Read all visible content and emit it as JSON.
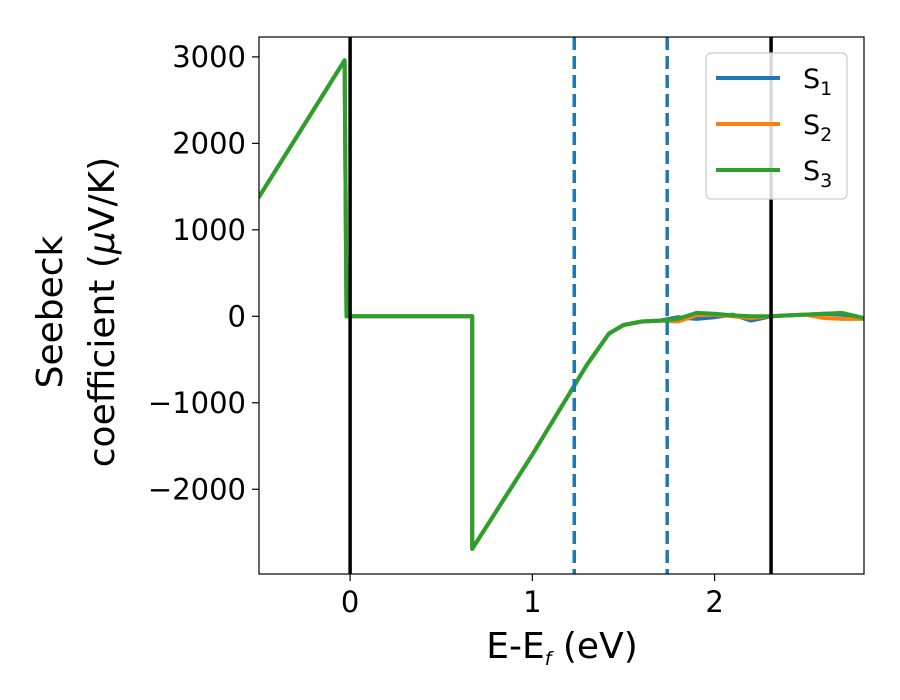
{
  "chart_data": {
    "type": "line",
    "xlabel": {
      "main": "E-E",
      "sub": "f",
      "unit": " (eV)"
    },
    "ylabel": {
      "line1": "Seebeck",
      "line2": "coefficient  (",
      "mu": "μ",
      "unit": "V/K)"
    },
    "xlim": [
      -0.5,
      2.82
    ],
    "ylim": [
      -2980,
      3230
    ],
    "xticks": [
      0,
      1,
      2
    ],
    "xtick_labels": [
      "0",
      "1",
      "2"
    ],
    "yticks": [
      -2000,
      -1000,
      0,
      1000,
      2000,
      3000
    ],
    "ytick_labels": [
      "−2000",
      "−1000",
      "0",
      "1000",
      "2000",
      "3000"
    ],
    "grid": false,
    "legend_position": "top-right",
    "vertical_lines": [
      {
        "x": 0.0,
        "style": "solid",
        "color": "#000000"
      },
      {
        "x": 2.31,
        "style": "solid",
        "color": "#000000"
      },
      {
        "x": 1.23,
        "style": "dashed",
        "color": "#1f77b4"
      },
      {
        "x": 1.74,
        "style": "dashed",
        "color": "#1f77b4"
      }
    ],
    "series": [
      {
        "name": "S",
        "sub": "1",
        "color": "#1f77b4",
        "x": [
          -0.5,
          -0.03,
          -0.02,
          0.67,
          0.67,
          1.0,
          1.3,
          1.42,
          1.5,
          1.6,
          1.7,
          1.8,
          1.9,
          2.0,
          2.1,
          2.2,
          2.31,
          2.4,
          2.5,
          2.6,
          2.7,
          2.82
        ],
        "y": [
          1380,
          2960,
          0,
          0,
          -2690,
          -1600,
          -560,
          -200,
          -100,
          -60,
          -50,
          -10,
          -30,
          -10,
          20,
          -50,
          0,
          10,
          20,
          30,
          20,
          -30
        ]
      },
      {
        "name": "S",
        "sub": "2",
        "color": "#ff7f0e",
        "x": [
          -0.5,
          -0.03,
          -0.02,
          0.67,
          0.67,
          1.0,
          1.3,
          1.42,
          1.5,
          1.6,
          1.7,
          1.8,
          1.9,
          2.0,
          2.1,
          2.2,
          2.31,
          2.4,
          2.5,
          2.6,
          2.7,
          2.82
        ],
        "y": [
          1380,
          2960,
          0,
          0,
          -2690,
          -1600,
          -560,
          -200,
          -100,
          -60,
          -50,
          -60,
          10,
          20,
          0,
          -20,
          0,
          10,
          20,
          -20,
          -30,
          -30
        ]
      },
      {
        "name": "S",
        "sub": "3",
        "color": "#2ca02c",
        "x": [
          -0.5,
          -0.03,
          -0.02,
          0.67,
          0.67,
          1.0,
          1.3,
          1.42,
          1.5,
          1.6,
          1.7,
          1.8,
          1.9,
          2.0,
          2.1,
          2.2,
          2.31,
          2.4,
          2.5,
          2.6,
          2.7,
          2.82
        ],
        "y": [
          1380,
          2960,
          0,
          0,
          -2690,
          -1600,
          -560,
          -200,
          -100,
          -60,
          -50,
          -30,
          40,
          30,
          10,
          0,
          0,
          10,
          20,
          30,
          40,
          -20
        ]
      }
    ]
  }
}
